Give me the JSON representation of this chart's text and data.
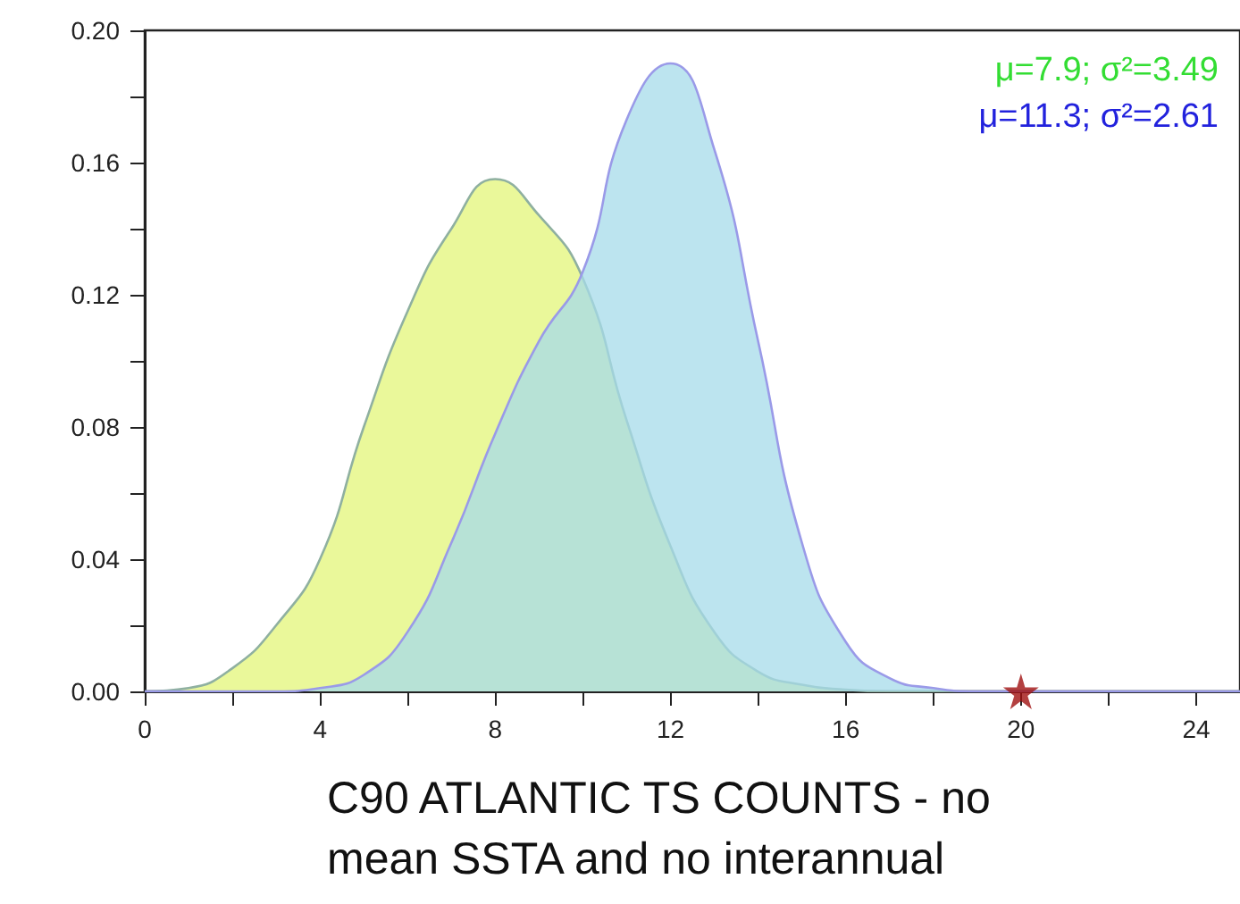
{
  "chart_data": {
    "type": "area",
    "xlabel": "C90 ATLANTIC TS COUNTS - no mean SSTA and no interannual",
    "x": [
      0,
      1,
      2,
      3,
      4,
      5,
      6,
      7,
      8,
      9,
      10,
      11,
      12,
      13,
      14,
      15,
      16,
      17,
      18,
      19,
      20,
      21,
      22,
      23,
      24,
      25
    ],
    "series": [
      {
        "color": "#eaf89a",
        "values": [
          0,
          0.001,
          0.007,
          0.02,
          0.04,
          0.08,
          0.115,
          0.14,
          0.155,
          0.144,
          0.125,
          0.082,
          0.044,
          0.018,
          0.006,
          0.002,
          0.0005,
          0,
          0,
          0,
          0,
          0,
          0,
          0,
          0,
          0
        ]
      },
      {
        "color": "#a6dbe9",
        "values": [
          0,
          0,
          0,
          0,
          0.001,
          0.005,
          0.018,
          0.045,
          0.078,
          0.106,
          0.127,
          0.173,
          0.19,
          0.164,
          0.106,
          0.045,
          0.015,
          0.004,
          0.001,
          0,
          0,
          0,
          0,
          0,
          0,
          0
        ]
      },
      {
        "type": "scatter",
        "color": "#a01010",
        "x": [
          20
        ],
        "values": [
          0
        ],
        "marker": "star"
      }
    ],
    "annotations": [
      "μ=7.9; σ²=3.49",
      "μ=11.3; σ²=2.61"
    ],
    "xlim": [
      0,
      25
    ],
    "xticks": [
      0,
      {
        "value": 2,
        "label": null
      },
      4,
      {
        "value": 6,
        "label": null
      },
      8,
      {
        "value": 10,
        "label": null
      },
      12,
      {
        "value": 14,
        "label": null
      },
      16,
      {
        "value": 18,
        "label": null
      },
      20,
      {
        "value": 22,
        "label": null
      },
      24
    ],
    "ylim": [
      0,
      0.2
    ],
    "yticks": [
      "0.00",
      {
        "value": 0.02,
        "label": null
      },
      {
        "value": 0.04,
        "label": "0.04"
      },
      {
        "value": 0.06,
        "label": null
      },
      {
        "value": 0.08,
        "label": "0.08"
      },
      {
        "value": 0.1,
        "label": null
      },
      {
        "value": 0.12,
        "label": "0.12"
      },
      {
        "value": 0.14,
        "label": null
      },
      {
        "value": 0.16,
        "label": "0.16"
      },
      {
        "value": 0.18,
        "label": null
      },
      {
        "value": 0.2,
        "label": "0.20"
      }
    ],
    "grid": false
  }
}
